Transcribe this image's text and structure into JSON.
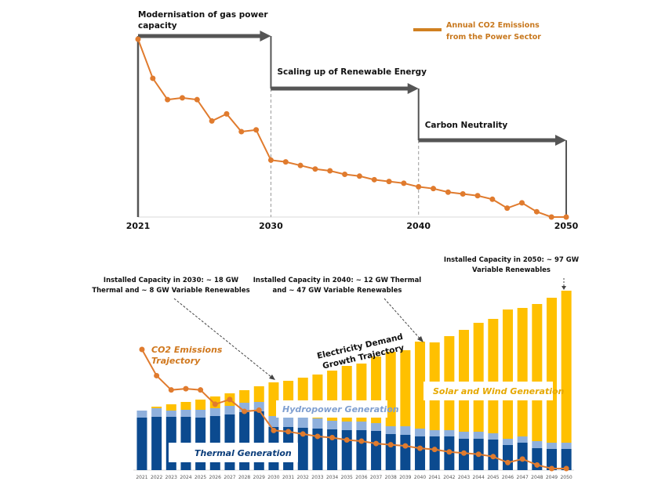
{
  "chart_data": [
    {
      "type": "line",
      "title": "",
      "x": [
        2021,
        2022,
        2023,
        2024,
        2025,
        2026,
        2027,
        2028,
        2029,
        2030,
        2031,
        2032,
        2033,
        2034,
        2035,
        2036,
        2037,
        2038,
        2039,
        2040,
        2041,
        2042,
        2043,
        2044,
        2045,
        2046,
        2047,
        2048,
        2049,
        2050
      ],
      "series": [
        {
          "name": "Annual CO2 Emissions from the Power Sector",
          "values": [
            100,
            78,
            66,
            67,
            66,
            54,
            58,
            48,
            49,
            32,
            31,
            29,
            27,
            26,
            24,
            23,
            21,
            20,
            19,
            17,
            16,
            14,
            13,
            12,
            10,
            5,
            8,
            3,
            0,
            0
          ]
        }
      ],
      "x_tick_labels": [
        "2021",
        "2030",
        "2040",
        "2050"
      ],
      "xlim": [
        2021,
        2050
      ],
      "ylim": [
        0,
        100
      ],
      "legend": {
        "label_line1": "Annual CO2 Emissions",
        "label_line2": "from the Power Sector",
        "position": "top-right"
      },
      "phases": [
        {
          "label_line1": "Modernisation of gas power",
          "label_line2": "capacity",
          "start": 2021,
          "end": 2030,
          "level": 1
        },
        {
          "label_line1": "Scaling up of Renewable Energy",
          "label_line2": "",
          "start": 2030,
          "end": 2040,
          "level": 2
        },
        {
          "label_line1": "Carbon Neutrality",
          "label_line2": "",
          "start": 2040,
          "end": 2050,
          "level": 3
        }
      ],
      "colors": {
        "line": "#e07b2e",
        "arrow": "#555555",
        "dashed": "#999999"
      }
    },
    {
      "type": "bar",
      "stacked": true,
      "categories": [
        "2021",
        "2022",
        "2023",
        "2024",
        "2025",
        "2026",
        "2027",
        "2028",
        "2029",
        "2030",
        "2031",
        "2032",
        "2033",
        "2034",
        "2035",
        "2036",
        "2037",
        "2038",
        "2039",
        "2040",
        "2041",
        "2042",
        "2043",
        "2044",
        "2045",
        "2046",
        "2047",
        "2048",
        "2049",
        "2050"
      ],
      "series": [
        {
          "name": "Thermal Generation",
          "color": "#0b4a8f",
          "values": [
            67,
            68,
            68,
            68,
            67,
            69,
            71,
            74,
            75,
            55,
            55,
            54,
            53,
            52,
            51,
            51,
            50,
            46,
            45,
            43,
            43,
            43,
            40,
            40,
            39,
            32,
            35,
            28,
            27,
            27
          ]
        },
        {
          "name": "Hydropower Generation",
          "color": "#8fb0dc",
          "values": [
            9,
            11,
            8,
            9,
            10,
            10,
            11,
            12,
            12,
            14,
            13,
            13,
            13,
            11,
            11,
            11,
            10,
            10,
            11,
            10,
            8,
            8,
            9,
            9,
            8,
            8,
            8,
            9,
            8,
            8
          ]
        },
        {
          "name": "Solar and Wind Generation",
          "color": "#ffc000",
          "values": [
            0,
            2,
            8,
            10,
            13,
            15,
            16,
            16,
            20,
            43,
            46,
            51,
            56,
            64,
            71,
            74,
            85,
            95,
            97,
            111,
            112,
            120,
            130,
            139,
            146,
            165,
            164,
            175,
            185,
            194
          ]
        }
      ],
      "overlay_line": {
        "name": "CO2 Emissions Trajectory",
        "label_line1": "CO2  Emissions",
        "label_line2": "Trajectory",
        "color": "#e07b2e",
        "values": [
          100,
          78,
          66,
          67,
          66,
          54,
          58,
          48,
          49,
          32,
          31,
          29,
          27,
          26,
          24,
          23,
          21,
          20,
          19,
          17,
          16,
          14,
          13,
          12,
          10,
          5,
          8,
          3,
          0,
          0
        ]
      },
      "ylim": [
        0,
        230
      ],
      "xlabel": "",
      "ylabel": "",
      "annotations": [
        {
          "line1": "Installed Capacity in 2030: ~ 18 GW",
          "line2": "Thermal and ~ 8 GW Variable Renewables",
          "target": "2030"
        },
        {
          "line1": "Installed Capacity in 2040: ~ 12 GW Thermal",
          "line2": "and ~ 47 GW Variable Renewables",
          "target": "2040"
        },
        {
          "line1": "Installed Capacity in 2050: ~ 97 GW",
          "line2": "Variable Renewables",
          "target": "2050"
        }
      ],
      "demand_label": {
        "line1": "Electricity Demand",
        "line2": "Growth Trajectory"
      },
      "segment_labels": {
        "thermal": "Thermal Generation",
        "hydro": "Hydropower Generation",
        "solar": "Solar and Wind Generation"
      }
    }
  ]
}
